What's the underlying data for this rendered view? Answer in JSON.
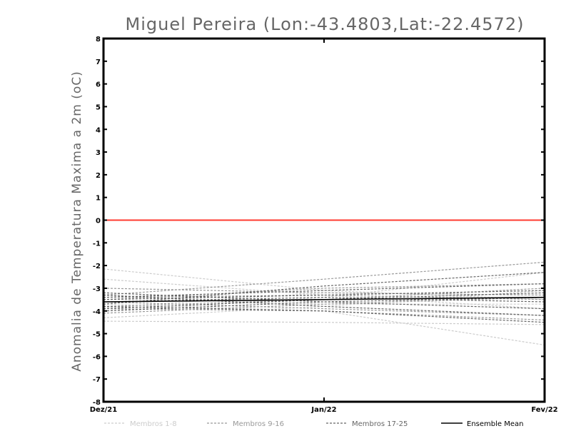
{
  "chart_data": {
    "type": "line",
    "title": "Miguel Pereira (Lon:-43.4803,Lat:-22.4572)",
    "xlabel": "",
    "ylabel": "Anomalia de Temperatura Maxima a 2m (oC)",
    "categories": [
      "Dez/21",
      "Jan/22",
      "Fev/22"
    ],
    "ylim": [
      -8,
      8
    ],
    "yticks": [
      8,
      7,
      6,
      5,
      4,
      3,
      2,
      1,
      0,
      -1,
      -2,
      -3,
      -4,
      -5,
      -6,
      -7,
      -8
    ],
    "zero_line_color": "#ff3b30",
    "groups": [
      {
        "name": "Membros 1-8",
        "color": "#cccccc",
        "dashed": true,
        "series": [
          {
            "values": [
              -2.15,
              -3.1,
              -3.5
            ]
          },
          {
            "values": [
              -4.45,
              -4.5,
              -4.6
            ]
          },
          {
            "values": [
              -4.0,
              -3.4,
              -2.3
            ]
          },
          {
            "values": [
              -3.3,
              -3.7,
              -3.7
            ]
          },
          {
            "values": [
              -3.7,
              -4.0,
              -5.5
            ]
          },
          {
            "values": [
              -3.85,
              -3.2,
              -3.3
            ]
          },
          {
            "values": [
              -4.3,
              -3.8,
              -3.1
            ]
          },
          {
            "values": [
              -2.6,
              -3.3,
              -3.9
            ]
          }
        ]
      },
      {
        "name": "Membros 9-16",
        "color": "#999999",
        "dashed": true,
        "series": [
          {
            "values": [
              -3.3,
              -2.6,
              -1.85
            ]
          },
          {
            "values": [
              -3.5,
              -3.0,
              -2.8
            ]
          },
          {
            "values": [
              -3.8,
              -3.5,
              -3.0
            ]
          },
          {
            "values": [
              -3.6,
              -3.9,
              -4.2
            ]
          },
          {
            "values": [
              -3.4,
              -3.3,
              -3.5
            ]
          },
          {
            "values": [
              -4.1,
              -3.7,
              -3.4
            ]
          },
          {
            "values": [
              -3.0,
              -3.2,
              -3.3
            ]
          },
          {
            "values": [
              -3.9,
              -4.0,
              -4.4
            ]
          }
        ]
      },
      {
        "name": "Membros 17-25",
        "color": "#666666",
        "dashed": true,
        "series": [
          {
            "values": [
              -3.7,
              -2.9,
              -2.3
            ]
          },
          {
            "values": [
              -3.5,
              -3.3,
              -3.1
            ]
          },
          {
            "values": [
              -3.9,
              -3.5,
              -3.2
            ]
          },
          {
            "values": [
              -3.2,
              -3.6,
              -3.9
            ]
          },
          {
            "values": [
              -3.3,
              -3.8,
              -4.2
            ]
          },
          {
            "values": [
              -3.8,
              -4.0,
              -4.5
            ]
          },
          {
            "values": [
              -4.0,
              -3.6,
              -3.4
            ]
          },
          {
            "values": [
              -3.6,
              -3.4,
              -3.6
            ]
          },
          {
            "values": [
              -3.4,
              -3.1,
              -2.8
            ]
          }
        ]
      },
      {
        "name": "Ensemble Mean",
        "color": "#000000",
        "dashed": false,
        "series": [
          {
            "values": [
              -3.6,
              -3.5,
              -3.4
            ]
          }
        ]
      }
    ]
  }
}
